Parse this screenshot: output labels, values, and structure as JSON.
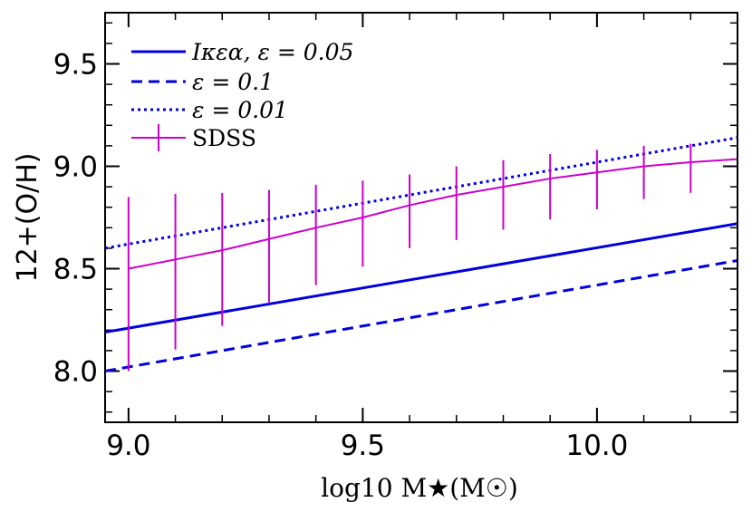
{
  "chart_data": {
    "type": "line",
    "title": "",
    "xlabel": "log10 M★(M☉)",
    "ylabel": "12+(O/H)",
    "xlim": [
      8.95,
      10.3
    ],
    "ylim": [
      7.75,
      9.75
    ],
    "xticks": [
      9.0,
      9.5,
      10.0
    ],
    "xtick_labels": [
      "9.0",
      "9.5",
      "10.0"
    ],
    "yticks": [
      8.0,
      8.5,
      9.0,
      9.5
    ],
    "ytick_labels": [
      "8.0",
      "8.5",
      "9.0",
      "9.5"
    ],
    "legend_position": "top-left",
    "series": [
      {
        "name": "Ικεα, ε = 0.05",
        "style": "solid",
        "color": "#0000dd",
        "x": [
          8.95,
          10.3
        ],
        "y": [
          8.19,
          8.72
        ]
      },
      {
        "name": "ε = 0.1",
        "style": "dashed",
        "color": "#0000dd",
        "x": [
          8.95,
          10.3
        ],
        "y": [
          8.0,
          8.54
        ]
      },
      {
        "name": "ε = 0.01",
        "style": "dotted",
        "color": "#0000dd",
        "x": [
          8.95,
          10.3
        ],
        "y": [
          8.6,
          9.14
        ]
      },
      {
        "name": "SDSS",
        "style": "errorbar",
        "color": "#cc00cc",
        "x": [
          9.0,
          9.1,
          9.2,
          9.3,
          9.4,
          9.5,
          9.6,
          9.7,
          9.8,
          9.9,
          10.0,
          10.1,
          10.2,
          10.3
        ],
        "y": [
          8.5,
          8.545,
          8.59,
          8.645,
          8.7,
          8.75,
          8.81,
          8.86,
          8.9,
          8.94,
          8.97,
          9.0,
          9.02,
          9.035
        ],
        "yerr_low": [
          0.5,
          0.44,
          0.37,
          0.31,
          0.28,
          0.24,
          0.21,
          0.22,
          0.21,
          0.2,
          0.18,
          0.16,
          0.15,
          0.1
        ],
        "yerr_high": [
          0.35,
          0.32,
          0.28,
          0.24,
          0.21,
          0.18,
          0.15,
          0.14,
          0.13,
          0.12,
          0.11,
          0.1,
          0.09,
          0.0
        ]
      }
    ],
    "legend": [
      {
        "series_index": 0,
        "text": "Ικεα,  ε = 0.05"
      },
      {
        "series_index": 1,
        "text": "ε = 0.1"
      },
      {
        "series_index": 2,
        "text": "ε = 0.01"
      },
      {
        "series_index": 3,
        "text": "SDSS"
      }
    ]
  }
}
